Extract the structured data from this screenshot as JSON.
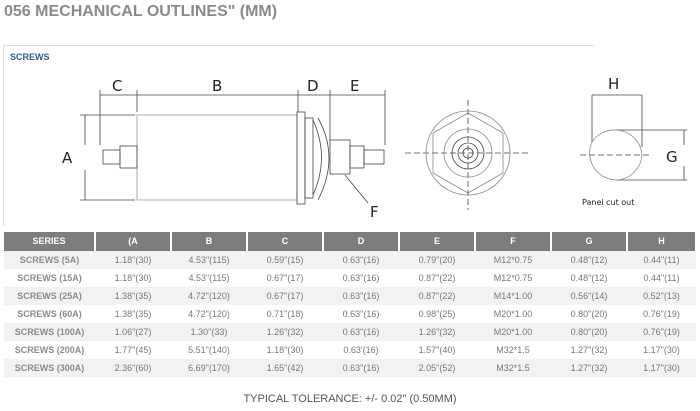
{
  "title": "056 MECHANICAL OUTLINES\" (MM)",
  "section_label": "SCREWS",
  "drawing": {
    "dim_labels": [
      "A",
      "B",
      "C",
      "D",
      "E",
      "F",
      "G",
      "H"
    ],
    "panel_caption": "Panel cut out"
  },
  "table": {
    "headers": [
      "SERIES",
      "(A",
      "B",
      "C",
      "D",
      "E",
      "F",
      "G",
      "H"
    ],
    "rows": [
      [
        "SCREWS (5A)",
        "1.18\"(30)",
        "4.53\"(115)",
        "0.59\"(15)",
        "0.63\"(16)",
        "0.79\"(20)",
        "M12*0.75",
        "0.48\"(12)",
        "0.44\"(11)"
      ],
      [
        "SCREWS (15A)",
        "1.18\"(30)",
        "4.53\"(115)",
        "0.67\"(17)",
        "0.63\"(16)",
        "0.87\"(22)",
        "M12*0.75",
        "0.48\"(12)",
        "0.44\"(11)"
      ],
      [
        "SCREWS (25A)",
        "1.38\"(35)",
        "4.72\"(120)",
        "0.67\"(17)",
        "0.63\"(16)",
        "0.87\"(22)",
        "M14*1.00",
        "0.56\"(14)",
        "0.52\"(13)"
      ],
      [
        "SCREWS (60A)",
        "1.38\"(35)",
        "4.72\"(120)",
        "0.71\"(18)",
        "0.63\"(16)",
        "0.98\"(25)",
        "M20*1.00",
        "0.80\"(20)",
        "0.76\"(19)"
      ],
      [
        "SCREWS (100A)",
        "1.06\"(27)",
        "1.30\"(33)",
        "1.26\"(32)",
        "0.63\"(16)",
        "1.26\"(32)",
        "M20*1.00",
        "0.80\"(20)",
        "0.76\"(19)"
      ],
      [
        "SCREWS (200A)",
        "1.77\"(45)",
        "5.51\"(140)",
        "1.18\"(30)",
        "0.63'(16)",
        "1.57\"(40)",
        "M32*1.5",
        "1.27\"(32)",
        "1.17\"(30)"
      ],
      [
        "SCREWS (300A)",
        "2.36\"(60)",
        "6.69\"(170)",
        "1.65\"(42)",
        "0.63\"(16)",
        "2.05\"(52)",
        "M32*1.5",
        "1.27\"(32)",
        "1.17\"(30)"
      ]
    ]
  },
  "tolerance": "TYPICAL TOLERANCE: +/- 0.02\" (0.50MM)"
}
